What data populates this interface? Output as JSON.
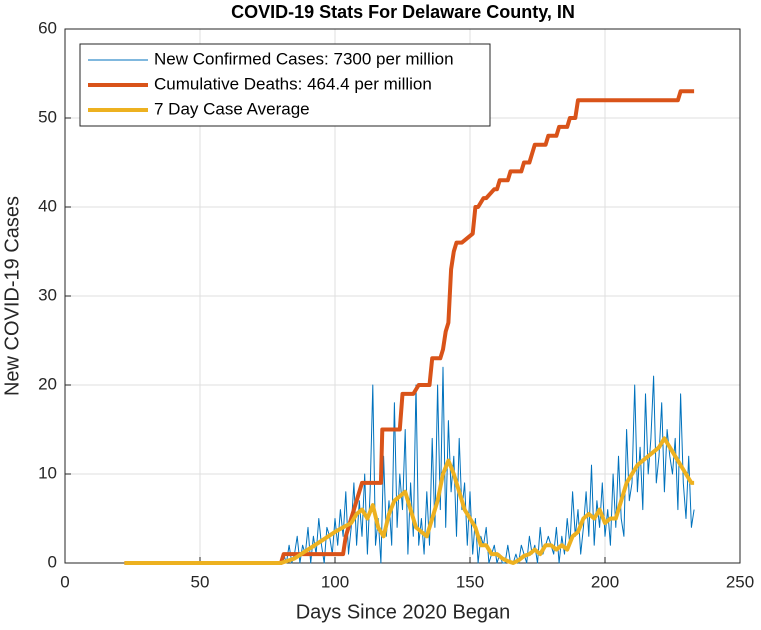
{
  "chart_data": {
    "type": "line",
    "title": "COVID-19 Stats For Delaware County, IN",
    "xlabel": "Days Since 2020 Began",
    "ylabel": "New COVID-19 Cases",
    "xlim": [
      0,
      250
    ],
    "xticks": [
      0,
      50,
      100,
      150,
      200,
      250
    ],
    "ylim": [
      0,
      60
    ],
    "yticks": [
      0,
      10,
      20,
      30,
      40,
      50,
      60
    ],
    "grid": true,
    "legend": "northwest",
    "series": [
      {
        "name": "New Confirmed Cases: 7300 per million",
        "color": "#0072BD",
        "width": 1,
        "x": [
          22,
          79,
          80,
          81,
          82,
          83,
          84,
          85,
          86,
          87,
          88,
          89,
          90,
          91,
          92,
          93,
          94,
          95,
          96,
          97,
          98,
          99,
          100,
          101,
          102,
          103,
          104,
          105,
          106,
          107,
          108,
          109,
          110,
          111,
          112,
          113,
          114,
          115,
          116,
          117,
          118,
          119,
          120,
          121,
          122,
          123,
          124,
          125,
          126,
          127,
          128,
          129,
          130,
          131,
          132,
          133,
          134,
          135,
          136,
          137,
          138,
          139,
          140,
          141,
          142,
          143,
          144,
          145,
          146,
          147,
          148,
          149,
          150,
          151,
          152,
          153,
          154,
          155,
          156,
          157,
          158,
          159,
          160,
          161,
          162,
          163,
          164,
          165,
          166,
          167,
          168,
          169,
          170,
          171,
          172,
          173,
          174,
          175,
          176,
          177,
          178,
          179,
          180,
          181,
          182,
          183,
          184,
          185,
          186,
          187,
          188,
          189,
          190,
          191,
          192,
          193,
          194,
          195,
          196,
          197,
          198,
          199,
          200,
          201,
          202,
          203,
          204,
          205,
          206,
          207,
          208,
          209,
          210,
          211,
          212,
          213,
          214,
          215,
          216,
          217,
          218,
          219,
          220,
          221,
          222,
          223,
          224,
          225,
          226,
          227,
          228,
          229,
          230,
          231,
          232,
          233
        ],
        "values": [
          0,
          0,
          0,
          1,
          0,
          2,
          0,
          1,
          3,
          0,
          2,
          1,
          4,
          0,
          3,
          1,
          5,
          2,
          0,
          4,
          3,
          1,
          5,
          2,
          6,
          3,
          8,
          1,
          4,
          9,
          2,
          7,
          3,
          10,
          1,
          8,
          20,
          2,
          5,
          0,
          12,
          3,
          7,
          2,
          18,
          4,
          10,
          6,
          15,
          1,
          9,
          3,
          20,
          2,
          5,
          1,
          8,
          2,
          14,
          4,
          20,
          6,
          22,
          4,
          16,
          8,
          12,
          3,
          14,
          6,
          9,
          2,
          8,
          1,
          5,
          0,
          3,
          2,
          4,
          0,
          1,
          2,
          0,
          1,
          0,
          0,
          2,
          0,
          0,
          1,
          0,
          2,
          1,
          0,
          3,
          1,
          2,
          0,
          4,
          1,
          2,
          3,
          2,
          1,
          4,
          0,
          3,
          1,
          5,
          2,
          8,
          3,
          6,
          1,
          4,
          8,
          3,
          11,
          2,
          7,
          4,
          9,
          3,
          6,
          2,
          10,
          4,
          12,
          5,
          3,
          15,
          7,
          9,
          20,
          8,
          13,
          6,
          19,
          10,
          14,
          21,
          9,
          12,
          18,
          8,
          15,
          12,
          10,
          14,
          6,
          19,
          9,
          5,
          12,
          4,
          6
        ]
      },
      {
        "name": "Cumulative Deaths: 464.4 per million",
        "color": "#D95319",
        "width": 4,
        "x": [
          22,
          80,
          81,
          103,
          104,
          106,
          108,
          110,
          111,
          117,
          117.5,
          124,
          125,
          129,
          131,
          135,
          136,
          139,
          140,
          141,
          142,
          143,
          144,
          145,
          146,
          147,
          151,
          152,
          153,
          155,
          156,
          159,
          160,
          161,
          164,
          165,
          169,
          170,
          172,
          173,
          174,
          178,
          179,
          182,
          183,
          186,
          187,
          189,
          190,
          227,
          228,
          233
        ],
        "values": [
          0,
          0,
          1,
          1,
          3,
          5,
          7,
          9,
          9,
          9,
          15,
          15,
          19,
          19,
          20,
          20,
          23,
          23,
          24,
          26,
          27,
          33,
          35,
          36,
          36,
          36,
          37,
          40,
          40,
          41,
          41,
          42,
          42,
          43,
          43,
          44,
          44,
          45,
          45,
          46,
          47,
          47,
          48,
          48,
          49,
          49,
          50,
          50,
          52,
          52,
          53,
          53
        ]
      },
      {
        "name": "7 Day Case Average",
        "color": "#EDB120",
        "width": 4,
        "x": [
          22,
          80,
          85,
          90,
          95,
          100,
          103,
          106,
          108,
          110,
          112,
          114,
          116,
          118,
          120,
          122,
          124,
          126,
          128,
          130,
          132,
          134,
          136,
          138,
          140,
          142,
          144,
          146,
          148,
          150,
          152,
          154,
          156,
          158,
          160,
          162,
          164,
          166,
          168,
          170,
          172,
          174,
          176,
          178,
          180,
          182,
          184,
          186,
          188,
          190,
          192,
          194,
          196,
          198,
          200,
          202,
          204,
          206,
          208,
          210,
          212,
          214,
          216,
          218,
          220,
          222,
          224,
          226,
          228,
          230,
          232,
          233
        ],
        "values": [
          0,
          0,
          0.5,
          1.5,
          2.5,
          3.5,
          4,
          4.5,
          5.5,
          6,
          5,
          6.5,
          4,
          3,
          5.5,
          7,
          7.5,
          8,
          6,
          4,
          3.5,
          3,
          5,
          7,
          10,
          11.5,
          10,
          8,
          6,
          5,
          4,
          2,
          2,
          1,
          1,
          0.5,
          0.2,
          0,
          0.3,
          0.8,
          1,
          1.5,
          1,
          2,
          2,
          1.5,
          2,
          1.5,
          3,
          3.5,
          5,
          5.5,
          5,
          6,
          4.5,
          5,
          5,
          7,
          9,
          10,
          11,
          11.5,
          12,
          12.5,
          13,
          14,
          13,
          12,
          11,
          10,
          9,
          9
        ]
      }
    ]
  }
}
